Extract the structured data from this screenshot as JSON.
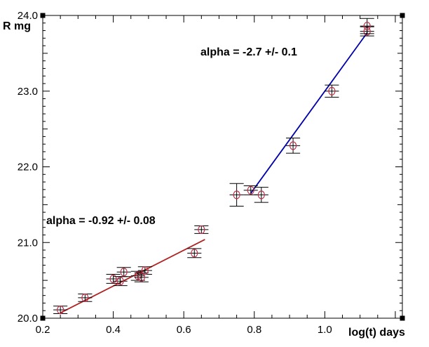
{
  "chart_data": {
    "type": "scatter",
    "title": "",
    "xlabel": "log(t) days",
    "ylabel": "R mg",
    "xlim": [
      0.2,
      1.22
    ],
    "ylim": [
      20.0,
      24.0
    ],
    "y_inverted": false,
    "grid": false,
    "x_tick_labels": [
      {
        "value": 0.2,
        "label": "0.2"
      },
      {
        "value": 0.4,
        "label": "0.4"
      },
      {
        "value": 0.6,
        "label": "0.6"
      },
      {
        "value": 0.8,
        "label": "0.8"
      },
      {
        "value": 1.0,
        "label": "1.0"
      }
    ],
    "y_tick_labels": [
      {
        "value": 20.0,
        "label": "20.0"
      },
      {
        "value": 21.0,
        "label": "21.0"
      },
      {
        "value": 22.0,
        "label": "22.0"
      },
      {
        "value": 23.0,
        "label": "23.0"
      },
      {
        "value": 24.0,
        "label": "24.0"
      }
    ],
    "points": [
      {
        "x": 0.25,
        "y": 20.11,
        "err": 0.05,
        "xerr": 0.02
      },
      {
        "x": 0.32,
        "y": 20.27,
        "err": 0.05,
        "xerr": 0.02
      },
      {
        "x": 0.4,
        "y": 20.52,
        "err": 0.06,
        "xerr": 0.02
      },
      {
        "x": 0.42,
        "y": 20.49,
        "err": 0.06,
        "xerr": 0.02
      },
      {
        "x": 0.43,
        "y": 20.61,
        "err": 0.06,
        "xerr": 0.02
      },
      {
        "x": 0.47,
        "y": 20.56,
        "err": 0.06,
        "xerr": 0.02
      },
      {
        "x": 0.48,
        "y": 20.54,
        "err": 0.06,
        "xerr": 0.02
      },
      {
        "x": 0.49,
        "y": 20.63,
        "err": 0.05,
        "xerr": 0.02
      },
      {
        "x": 0.63,
        "y": 20.86,
        "err": 0.06,
        "xerr": 0.02
      },
      {
        "x": 0.65,
        "y": 21.17,
        "err": 0.05,
        "xerr": 0.02
      },
      {
        "x": 0.75,
        "y": 21.63,
        "err": 0.15,
        "xerr": 0.02
      },
      {
        "x": 0.79,
        "y": 21.69,
        "err": 0.06,
        "xerr": 0.02
      },
      {
        "x": 0.82,
        "y": 21.63,
        "err": 0.1,
        "xerr": 0.02
      },
      {
        "x": 0.91,
        "y": 22.28,
        "err": 0.1,
        "xerr": 0.02
      },
      {
        "x": 1.02,
        "y": 23.0,
        "err": 0.08,
        "xerr": 0.02
      },
      {
        "x": 1.12,
        "y": 23.79,
        "err": 0.06,
        "xerr": 0.02
      },
      {
        "x": 1.12,
        "y": 23.86,
        "err": 0.1,
        "xerr": 0.02
      }
    ],
    "fits": [
      {
        "label": "alpha = -0.92 +/- 0.08",
        "color": "#b22222",
        "x": [
          0.25,
          0.66
        ],
        "y": [
          20.07,
          21.04
        ]
      },
      {
        "label": "alpha = -2.7 +/- 0.1",
        "color": "#0000aa",
        "x": [
          0.79,
          1.12
        ],
        "y": [
          21.65,
          23.77
        ]
      }
    ],
    "marker_color": "#c0304a"
  }
}
